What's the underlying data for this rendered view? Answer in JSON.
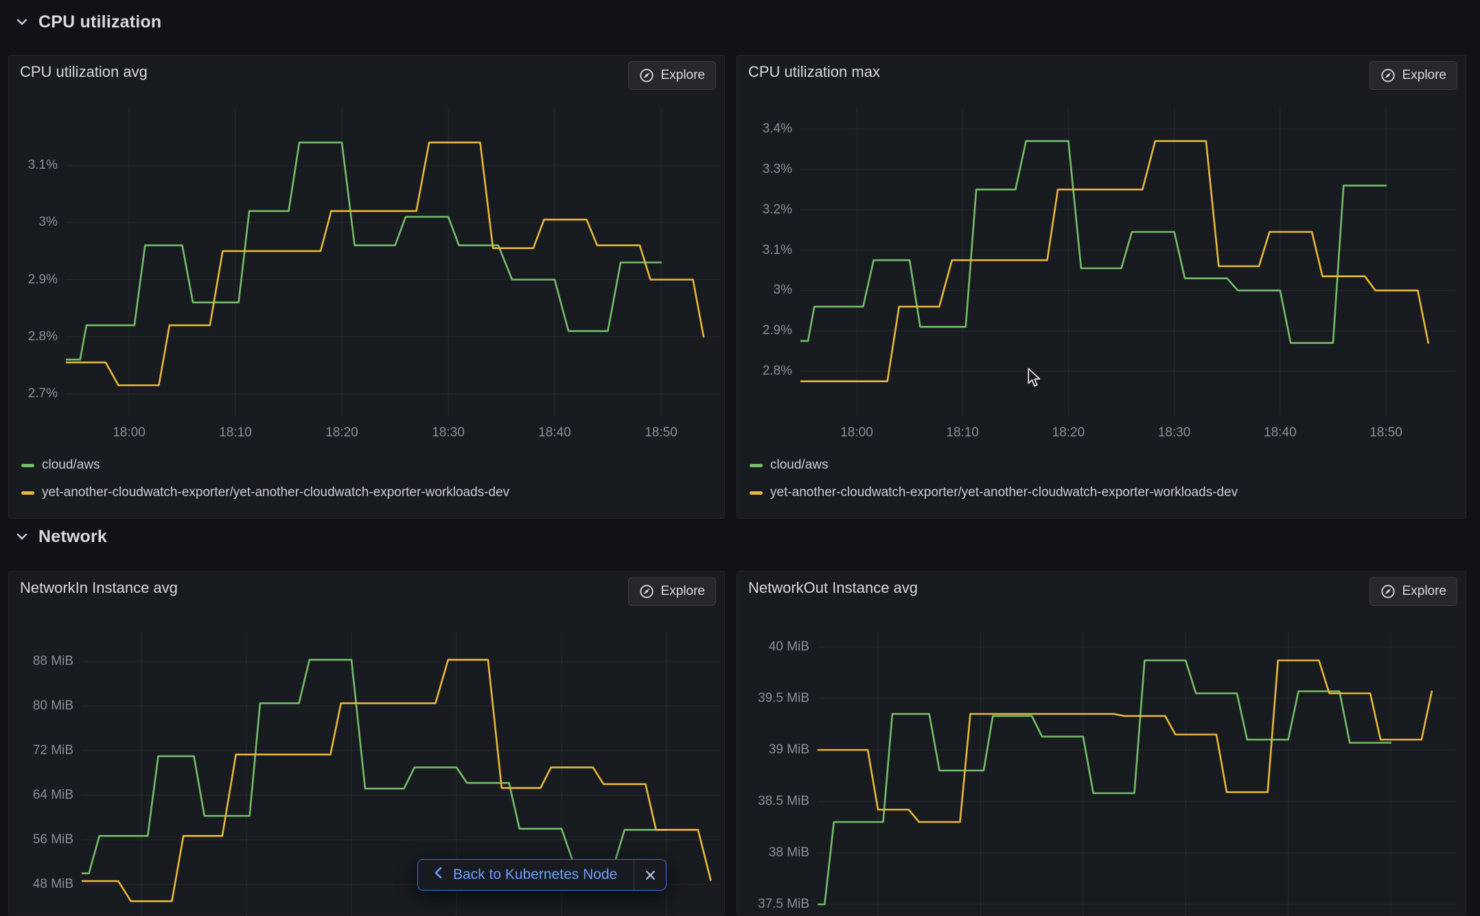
{
  "sections": [
    {
      "title": "CPU utilization"
    },
    {
      "title": "Network"
    }
  ],
  "toolbar": {
    "explore_label": "Explore"
  },
  "back_button": {
    "label": "Back to Kubernetes Node",
    "close_glyph": "×"
  },
  "icons": {
    "section_chevron": "chevron-down",
    "explore_icon": "compass",
    "back_chevron": "chevron-left",
    "close": "x",
    "mouse": "cursor-arrow"
  },
  "colors": {
    "canvas": "#111217",
    "panel": "#181b1f",
    "green_series": "#73BF69",
    "yellow_series": "#EAB839",
    "back_button_border": "#3d71d9",
    "back_button_text": "#6e9fff",
    "grid": "rgba(204,204,220,0.08)",
    "tick_text": "rgba(204,204,220,0.65)"
  },
  "chart_data": [
    {
      "type": "line",
      "title": "CPU utilization avg",
      "ylabel": "percent",
      "xlabel": "time",
      "grid": true,
      "legend_position": "bottom",
      "yticks": [
        {
          "v": 3.1,
          "label": "3.1%"
        },
        {
          "v": 3.0,
          "label": "3%"
        },
        {
          "v": 2.9,
          "label": "2.9%"
        },
        {
          "v": 2.8,
          "label": "2.8%"
        },
        {
          "v": 2.7,
          "label": "2.7%"
        }
      ],
      "xticks": [
        {
          "m": 0,
          "label": "18:00"
        },
        {
          "m": 10,
          "label": "18:10"
        },
        {
          "m": 20,
          "label": "18:20"
        },
        {
          "m": 30,
          "label": "18:30"
        },
        {
          "m": 40,
          "label": "18:40"
        },
        {
          "m": 50,
          "label": "18:50"
        }
      ],
      "series": [
        {
          "name": "cloud/aws",
          "color": "#73BF69",
          "points": [
            [
              -6,
              2.76
            ],
            [
              -4.6,
              2.76
            ],
            [
              -4,
              2.82
            ],
            [
              0.5,
              2.82
            ],
            [
              1.5,
              2.96
            ],
            [
              5,
              2.96
            ],
            [
              6,
              2.86
            ],
            [
              10.3,
              2.86
            ],
            [
              11.3,
              3.02
            ],
            [
              15,
              3.02
            ],
            [
              16,
              3.14
            ],
            [
              20,
              3.14
            ],
            [
              21.2,
              2.96
            ],
            [
              25,
              2.96
            ],
            [
              26,
              3.01
            ],
            [
              30,
              3.01
            ],
            [
              31,
              2.96
            ],
            [
              34.7,
              2.96
            ],
            [
              36,
              2.9
            ],
            [
              40,
              2.9
            ],
            [
              41.3,
              2.81
            ],
            [
              45,
              2.81
            ],
            [
              46.2,
              2.93
            ],
            [
              50,
              2.93
            ]
          ]
        },
        {
          "name": "yet-another-cloudwatch-exporter/yet-another-cloudwatch-exporter-workloads-dev",
          "color": "#EAB839",
          "points": [
            [
              -6,
              2.755
            ],
            [
              -2.2,
              2.755
            ],
            [
              -1,
              2.715
            ],
            [
              2.8,
              2.715
            ],
            [
              3.8,
              2.82
            ],
            [
              7.6,
              2.82
            ],
            [
              8.8,
              2.95
            ],
            [
              18,
              2.95
            ],
            [
              19,
              3.02
            ],
            [
              27,
              3.02
            ],
            [
              28.2,
              3.14
            ],
            [
              33,
              3.14
            ],
            [
              34.2,
              2.955
            ],
            [
              38,
              2.955
            ],
            [
              39,
              3.005
            ],
            [
              43,
              3.005
            ],
            [
              44,
              2.96
            ],
            [
              48,
              2.96
            ],
            [
              49,
              2.9
            ],
            [
              53,
              2.9
            ],
            [
              54,
              2.8
            ]
          ]
        }
      ]
    },
    {
      "type": "line",
      "title": "CPU utilization max",
      "ylabel": "percent",
      "xlabel": "time",
      "grid": true,
      "legend_position": "bottom",
      "yticks": [
        {
          "v": 3.4,
          "label": "3.4%"
        },
        {
          "v": 3.3,
          "label": "3.3%"
        },
        {
          "v": 3.2,
          "label": "3.2%"
        },
        {
          "v": 3.1,
          "label": "3.1%"
        },
        {
          "v": 3.0,
          "label": "3%"
        },
        {
          "v": 2.9,
          "label": "2.9%"
        },
        {
          "v": 2.8,
          "label": "2.8%"
        }
      ],
      "xticks": [
        {
          "m": 0,
          "label": "18:00"
        },
        {
          "m": 10,
          "label": "18:10"
        },
        {
          "m": 20,
          "label": "18:20"
        },
        {
          "m": 30,
          "label": "18:30"
        },
        {
          "m": 40,
          "label": "18:40"
        },
        {
          "m": 50,
          "label": "18:50"
        }
      ],
      "series": [
        {
          "name": "cloud/aws",
          "color": "#73BF69",
          "points": [
            [
              -6,
              2.875
            ],
            [
              -4.6,
              2.875
            ],
            [
              -4,
              2.96
            ],
            [
              0.6,
              2.96
            ],
            [
              1.6,
              3.075
            ],
            [
              5,
              3.075
            ],
            [
              6,
              2.91
            ],
            [
              10.3,
              2.91
            ],
            [
              11.3,
              3.25
            ],
            [
              15,
              3.25
            ],
            [
              16,
              3.37
            ],
            [
              20,
              3.37
            ],
            [
              21.2,
              3.055
            ],
            [
              25,
              3.055
            ],
            [
              26,
              3.145
            ],
            [
              30,
              3.145
            ],
            [
              31,
              3.03
            ],
            [
              35,
              3.03
            ],
            [
              36,
              3.0
            ],
            [
              40,
              3.0
            ],
            [
              41,
              2.87
            ],
            [
              45,
              2.87
            ],
            [
              46,
              3.26
            ],
            [
              50,
              3.26
            ]
          ]
        },
        {
          "name": "yet-another-cloudwatch-exporter/yet-another-cloudwatch-exporter-workloads-dev",
          "color": "#EAB839",
          "points": [
            [
              -6,
              2.775
            ],
            [
              2.9,
              2.775
            ],
            [
              4,
              2.96
            ],
            [
              7.8,
              2.96
            ],
            [
              9,
              3.075
            ],
            [
              18,
              3.075
            ],
            [
              19,
              3.25
            ],
            [
              27,
              3.25
            ],
            [
              28.2,
              3.37
            ],
            [
              33,
              3.37
            ],
            [
              34.2,
              3.06
            ],
            [
              38,
              3.06
            ],
            [
              39,
              3.145
            ],
            [
              43,
              3.145
            ],
            [
              44,
              3.035
            ],
            [
              48,
              3.035
            ],
            [
              49,
              3.0
            ],
            [
              53,
              3.0
            ],
            [
              54,
              2.87
            ]
          ]
        }
      ]
    },
    {
      "type": "line",
      "title": "NetworkIn Instance avg",
      "ylabel": "MiB",
      "xlabel": "time",
      "grid": true,
      "legend_position": "bottom",
      "yticks": [
        {
          "v": 88,
          "label": "88 MiB"
        },
        {
          "v": 80,
          "label": "80 MiB"
        },
        {
          "v": 72,
          "label": "72 MiB"
        },
        {
          "v": 64,
          "label": "64 MiB"
        },
        {
          "v": 56,
          "label": "56 MiB"
        },
        {
          "v": 48,
          "label": "48 MiB"
        }
      ],
      "xticks": [
        {
          "m": 0
        },
        {
          "m": 10
        },
        {
          "m": 20
        },
        {
          "m": 30
        },
        {
          "m": 40
        },
        {
          "m": 50
        }
      ],
      "series": [
        {
          "name": "cloud/aws",
          "color": "#73BF69",
          "points": [
            [
              -6,
              50
            ],
            [
              -5,
              50
            ],
            [
              -4,
              56.7
            ],
            [
              0.6,
              56.7
            ],
            [
              1.6,
              71
            ],
            [
              5,
              71
            ],
            [
              6,
              60.3
            ],
            [
              10.3,
              60.3
            ],
            [
              11.3,
              80.5
            ],
            [
              15,
              80.5
            ],
            [
              16,
              88.3
            ],
            [
              20,
              88.3
            ],
            [
              21.3,
              65.2
            ],
            [
              25,
              65.2
            ],
            [
              26,
              69
            ],
            [
              30,
              69
            ],
            [
              31,
              66.2
            ],
            [
              35,
              66.2
            ],
            [
              36,
              58
            ],
            [
              40,
              58
            ],
            [
              41.2,
              51.5
            ],
            [
              45,
              51.5
            ],
            [
              46,
              57.8
            ],
            [
              50,
              57.8
            ]
          ]
        },
        {
          "name": "yet-another-cloudwatch-exporter/yet-another-cloudwatch-exporter-workloads-dev",
          "color": "#EAB839",
          "points": [
            [
              -6,
              48.6
            ],
            [
              -2.2,
              48.6
            ],
            [
              -1,
              45
            ],
            [
              2.9,
              45
            ],
            [
              4,
              56.7
            ],
            [
              7.7,
              56.7
            ],
            [
              9,
              71.3
            ],
            [
              18,
              71.3
            ],
            [
              19,
              80.5
            ],
            [
              28,
              80.5
            ],
            [
              29.2,
              88.3
            ],
            [
              33,
              88.3
            ],
            [
              34.3,
              65.3
            ],
            [
              38,
              65.3
            ],
            [
              39,
              69
            ],
            [
              43,
              69
            ],
            [
              44,
              66
            ],
            [
              48,
              66
            ],
            [
              49,
              57.8
            ],
            [
              53,
              57.8
            ],
            [
              54.2,
              48.8
            ]
          ]
        }
      ]
    },
    {
      "type": "line",
      "title": "NetworkOut Instance avg",
      "ylabel": "MiB",
      "xlabel": "time",
      "grid": true,
      "legend_position": "bottom",
      "yticks": [
        {
          "v": 40,
          "label": "40 MiB"
        },
        {
          "v": 39.5,
          "label": "39.5 MiB"
        },
        {
          "v": 39,
          "label": "39 MiB"
        },
        {
          "v": 38.5,
          "label": "38.5 MiB"
        },
        {
          "v": 38,
          "label": "38 MiB"
        },
        {
          "v": 37.5,
          "label": "37.5 MiB"
        }
      ],
      "xticks": [
        {
          "m": 0
        },
        {
          "m": 10
        },
        {
          "m": 20
        },
        {
          "m": 30
        },
        {
          "m": 40
        },
        {
          "m": 50
        }
      ],
      "series": [
        {
          "name": "cloud/aws",
          "color": "#73BF69",
          "points": [
            [
              -6,
              37.5
            ],
            [
              -5.2,
              37.5
            ],
            [
              -4.3,
              38.3
            ],
            [
              0.5,
              38.3
            ],
            [
              1.4,
              39.35
            ],
            [
              5,
              39.35
            ],
            [
              6,
              38.8
            ],
            [
              10.3,
              38.8
            ],
            [
              11.2,
              39.33
            ],
            [
              15,
              39.33
            ],
            [
              16,
              39.13
            ],
            [
              20,
              39.13
            ],
            [
              21,
              38.58
            ],
            [
              25,
              38.58
            ],
            [
              26,
              39.87
            ],
            [
              30,
              39.87
            ],
            [
              31,
              39.55
            ],
            [
              35,
              39.55
            ],
            [
              36,
              39.1
            ],
            [
              40,
              39.1
            ],
            [
              41,
              39.57
            ],
            [
              45,
              39.57
            ],
            [
              46,
              39.07
            ],
            [
              50,
              39.07
            ]
          ]
        },
        {
          "name": "yet-another-cloudwatch-exporter/yet-another-cloudwatch-exporter-workloads-dev",
          "color": "#EAB839",
          "points": [
            [
              -6,
              39.0
            ],
            [
              -1,
              39.0
            ],
            [
              0,
              38.42
            ],
            [
              3,
              38.42
            ],
            [
              4,
              38.3
            ],
            [
              8,
              38.3
            ],
            [
              9,
              39.35
            ],
            [
              23,
              39.35
            ],
            [
              24,
              39.33
            ],
            [
              28,
              39.33
            ],
            [
              29,
              39.15
            ],
            [
              33,
              39.15
            ],
            [
              34,
              38.59
            ],
            [
              38,
              38.59
            ],
            [
              39,
              39.87
            ],
            [
              43,
              39.87
            ],
            [
              44,
              39.55
            ],
            [
              48,
              39.55
            ],
            [
              49,
              39.1
            ],
            [
              53,
              39.1
            ],
            [
              54,
              39.57
            ]
          ]
        }
      ]
    }
  ]
}
